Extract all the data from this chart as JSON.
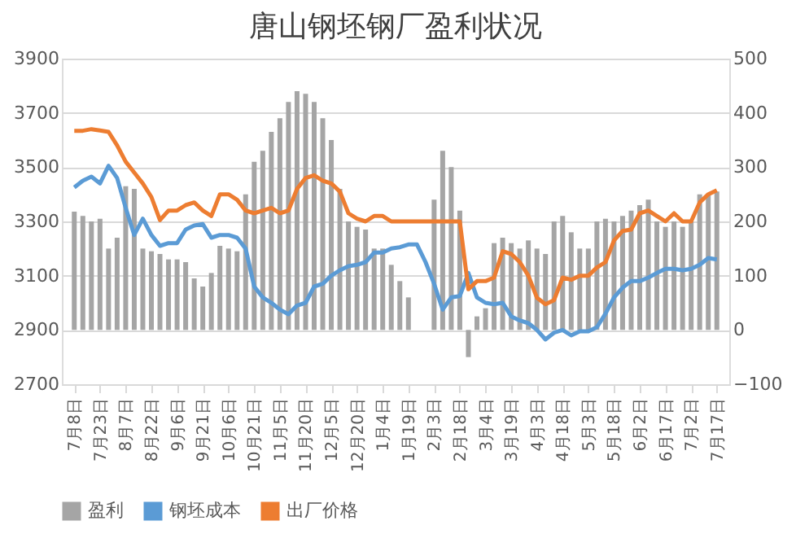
{
  "chart_data": {
    "type": "line",
    "title": "唐山钢坯钢厂盈利状况",
    "categories": [
      "7月8日",
      null,
      null,
      "7月23日",
      null,
      null,
      "8月7日",
      null,
      null,
      "8月22日",
      null,
      null,
      "9月6日",
      null,
      null,
      "9月21日",
      null,
      null,
      "10月6日",
      null,
      null,
      "10月21日",
      null,
      null,
      "11月5日",
      null,
      null,
      "11月20日",
      null,
      null,
      "12月5日",
      null,
      null,
      "12月20日",
      null,
      null,
      "1月4日",
      null,
      null,
      "1月19日",
      null,
      null,
      "2月3日",
      null,
      null,
      "2月18日",
      null,
      null,
      "3月4日",
      null,
      null,
      "3月19日",
      null,
      null,
      "4月3日",
      null,
      null,
      "4月18日",
      null,
      null,
      "5月3日",
      null,
      null,
      "5月18日",
      null,
      null,
      "6月2日",
      null,
      null,
      "6月17日",
      null,
      null,
      "7月2日",
      null,
      null,
      "7月17日"
    ],
    "series": [
      {
        "name": "盈利",
        "type": "bar",
        "axis": "y2",
        "color": "#a5a5a5",
        "values": [
          218,
          210,
          200,
          205,
          150,
          170,
          265,
          260,
          150,
          145,
          140,
          130,
          130,
          125,
          95,
          80,
          105,
          155,
          150,
          145,
          250,
          310,
          330,
          365,
          390,
          420,
          440,
          435,
          420,
          390,
          350,
          260,
          200,
          190,
          185,
          150,
          150,
          120,
          90,
          60,
          null,
          null,
          240,
          330,
          300,
          220,
          -50,
          25,
          40,
          160,
          170,
          160,
          150,
          165,
          150,
          140,
          200,
          210,
          180,
          150,
          150,
          200,
          205,
          200,
          210,
          220,
          230,
          240,
          200,
          190,
          200,
          190,
          200,
          250,
          250,
          255
        ]
      },
      {
        "name": "钢坯成本",
        "color": "#5b9bd5",
        "values": [
          3425,
          3450,
          3465,
          3440,
          3505,
          3460,
          3350,
          3250,
          3310,
          3250,
          3210,
          3220,
          3220,
          3270,
          3285,
          3290,
          3240,
          3250,
          3250,
          3240,
          3200,
          3060,
          3020,
          3000,
          2975,
          2958,
          2990,
          3000,
          3060,
          3070,
          3100,
          3120,
          3135,
          3140,
          3150,
          3185,
          3185,
          3200,
          3205,
          3215,
          3215,
          3150,
          3070,
          2975,
          3020,
          3025,
          3110,
          3020,
          3000,
          2995,
          3000,
          2950,
          2935,
          2925,
          2900,
          2865,
          2890,
          2900,
          2880,
          2895,
          2895,
          2910,
          2960,
          3020,
          3056,
          3080,
          3080,
          3093,
          3110,
          3125,
          3125,
          3120,
          3125,
          3140,
          3165,
          3160
        ]
      },
      {
        "name": "出厂价格",
        "color": "#ed7d31",
        "values": [
          3634,
          3634,
          3640,
          3635,
          3630,
          3580,
          3520,
          3480,
          3440,
          3390,
          3305,
          3340,
          3340,
          3360,
          3370,
          3340,
          3320,
          3400,
          3400,
          3380,
          3340,
          3330,
          3340,
          3350,
          3330,
          3340,
          3420,
          3460,
          3470,
          3450,
          3440,
          3410,
          3330,
          3310,
          3300,
          3320,
          3320,
          3300,
          3300,
          3300,
          3300,
          3300,
          3300,
          3300,
          3300,
          3300,
          3050,
          3080,
          3080,
          3093,
          3190,
          3180,
          3150,
          3100,
          3019,
          2995,
          3010,
          3093,
          3085,
          3100,
          3100,
          3130,
          3150,
          3230,
          3265,
          3270,
          3330,
          3340,
          3320,
          3300,
          3330,
          3300,
          3300,
          3370,
          3400,
          3415
        ]
      }
    ],
    "ylim": [
      2700,
      3900
    ],
    "yticks": [
      2700,
      2900,
      3100,
      3300,
      3500,
      3700,
      3900
    ],
    "y2lim": [
      -100,
      500
    ],
    "y2ticks": [
      -100,
      0,
      100,
      200,
      300,
      400,
      500
    ],
    "grid": "y",
    "legend": "bottom",
    "line_style": "solid",
    "marker": "none"
  }
}
